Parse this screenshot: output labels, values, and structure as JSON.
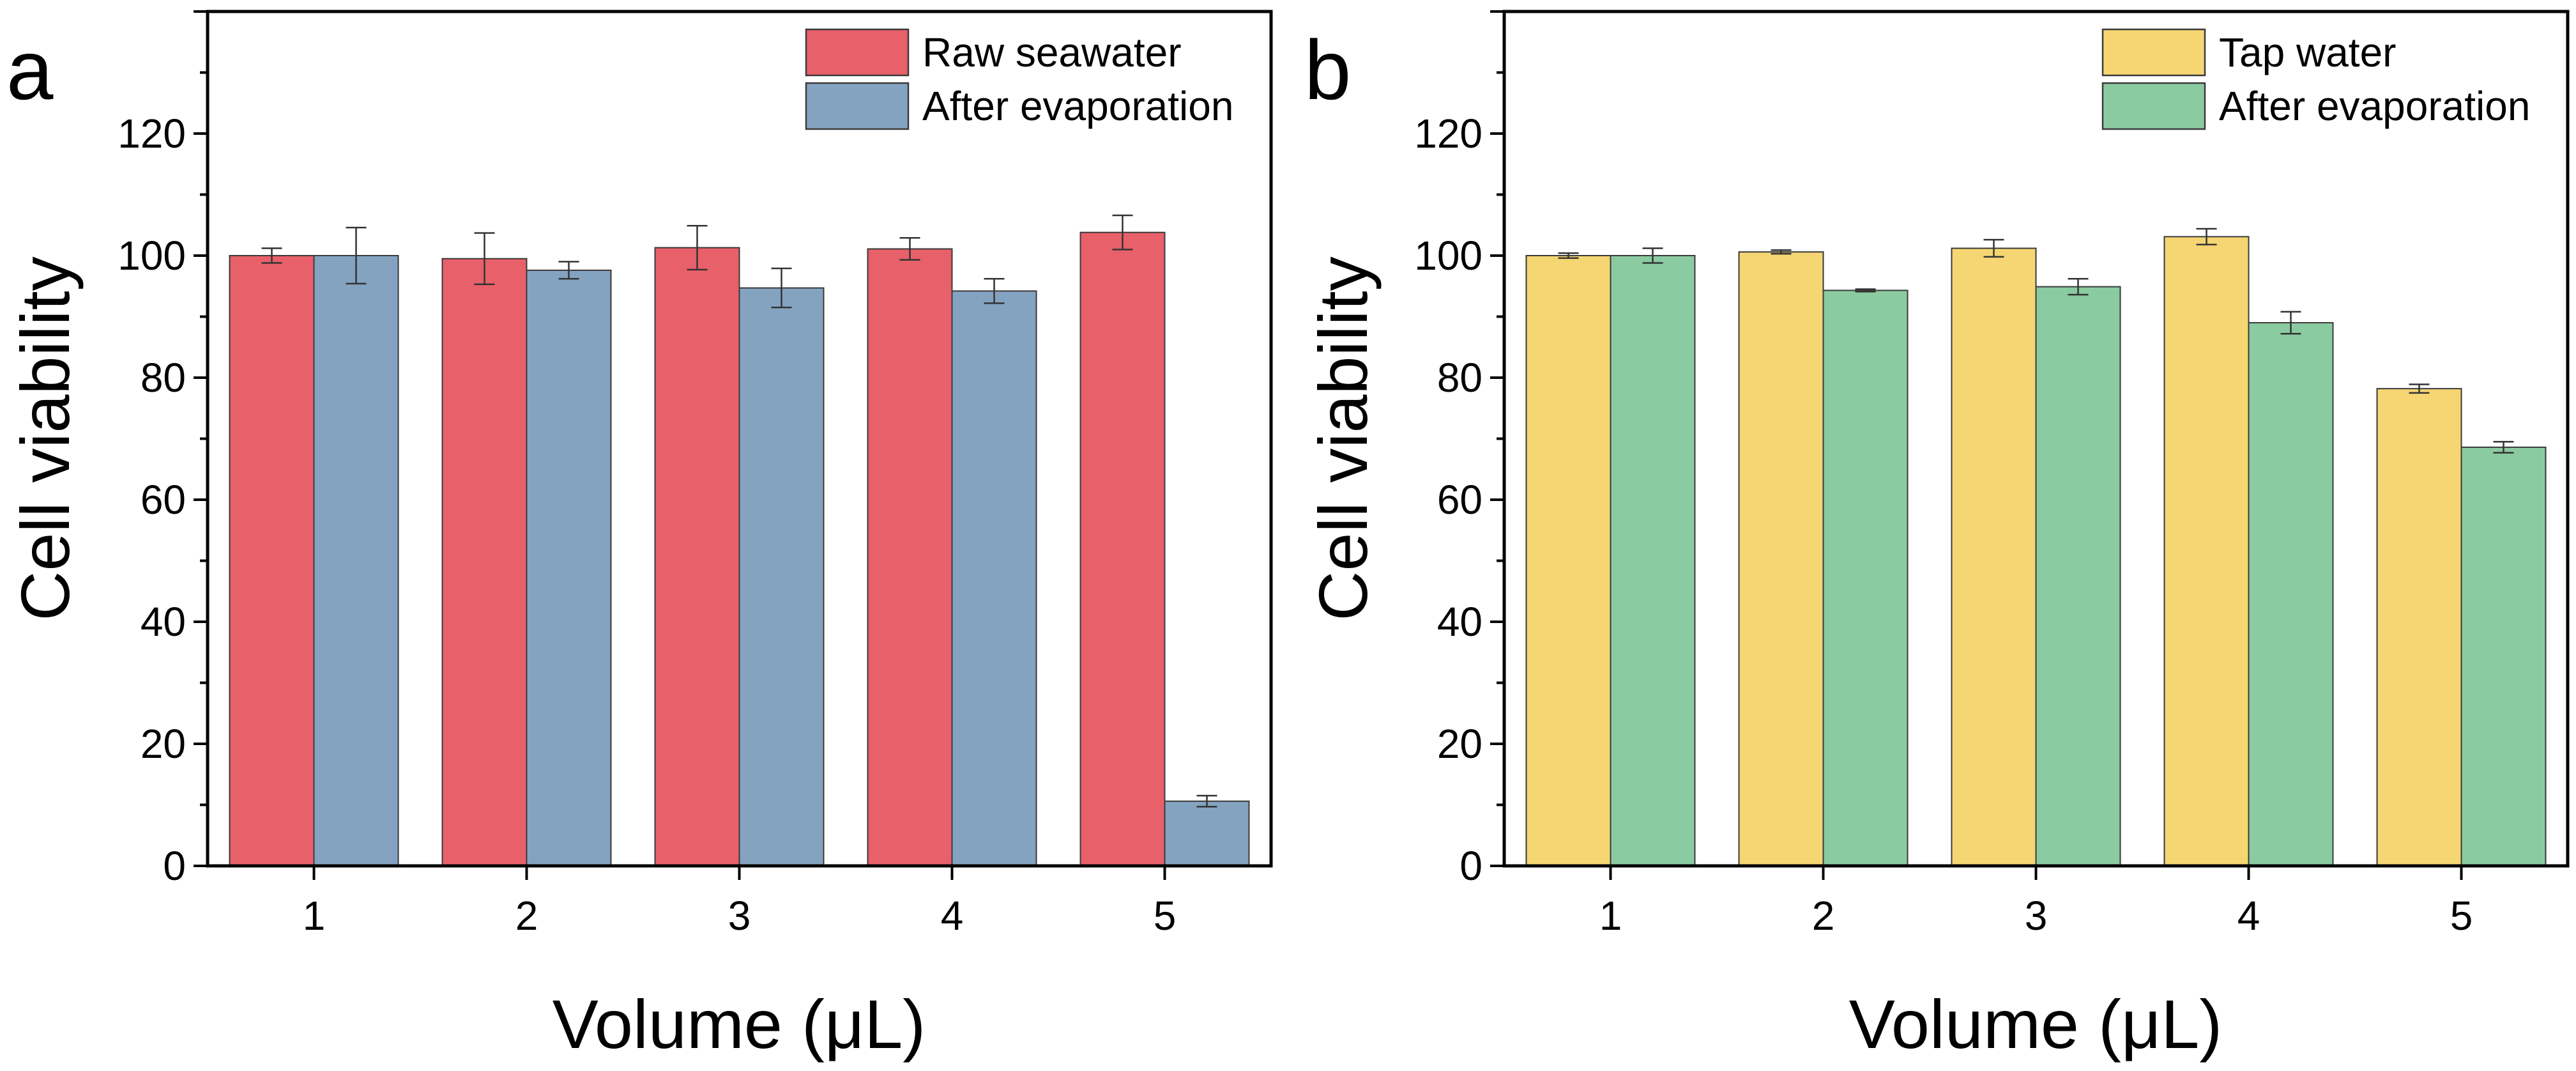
{
  "chart_data": [
    {
      "type": "bar",
      "panel_label": "a",
      "categories": [
        "1",
        "2",
        "3",
        "4",
        "5"
      ],
      "xlabel": "Volume (μL)",
      "ylabel": "Cell viability",
      "ylim": [
        0,
        140
      ],
      "yticks": [
        0,
        20,
        40,
        60,
        80,
        100,
        120
      ],
      "legend_position": "top-right",
      "series": [
        {
          "name": "Raw seawater",
          "color": "#E8606A",
          "values": [
            100,
            99.5,
            101.3,
            101.1,
            103.8
          ],
          "errors": [
            1.2,
            4.2,
            3.6,
            1.8,
            2.8
          ]
        },
        {
          "name": "After evaporation",
          "color": "#84A3C1",
          "values": [
            100,
            97.6,
            94.7,
            94.2,
            10.6
          ],
          "errors": [
            4.6,
            1.4,
            3.2,
            2.0,
            0.9
          ]
        }
      ]
    },
    {
      "type": "bar",
      "panel_label": "b",
      "categories": [
        "1",
        "2",
        "3",
        "4",
        "5"
      ],
      "xlabel": "Volume (μL)",
      "ylabel": "Cell viability",
      "ylim": [
        0,
        140
      ],
      "yticks": [
        0,
        20,
        40,
        60,
        80,
        100,
        120
      ],
      "legend_position": "top-right",
      "series": [
        {
          "name": "Tap water",
          "color": "#F5D673",
          "values": [
            100,
            100.6,
            101.2,
            103.1,
            78.2
          ],
          "errors": [
            0.4,
            0.3,
            1.4,
            1.3,
            0.7
          ]
        },
        {
          "name": "After evaporation",
          "color": "#8BCBA1",
          "values": [
            100,
            94.3,
            94.9,
            89.0,
            68.6
          ],
          "errors": [
            1.2,
            0.2,
            1.3,
            1.8,
            0.9
          ]
        }
      ]
    }
  ]
}
